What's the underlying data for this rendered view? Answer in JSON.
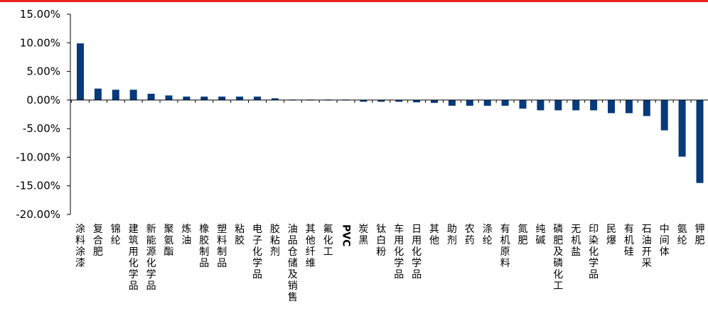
{
  "colors": {
    "accent_rule": "#e8231e",
    "bar": "#063a7a",
    "axis": "#000000",
    "text": "#000000"
  },
  "chart_data": {
    "type": "bar",
    "title": "",
    "xlabel": "",
    "ylabel": "",
    "ylim": [
      -0.2,
      0.15
    ],
    "y_ticks": [
      0.15,
      0.1,
      0.05,
      0.0,
      -0.05,
      -0.1,
      -0.15,
      -0.2
    ],
    "y_tick_labels": [
      "15.00%",
      "10.00%",
      "5.00%",
      "0.00%",
      "-5.00%",
      "-10.00%",
      "-15.00%",
      "-20.00%"
    ],
    "grid": false,
    "legend": "none",
    "categories": [
      "涂料涂漆",
      "复合肥",
      "锦纶",
      "建筑用化学品",
      "新能源化学品",
      "聚氨酯",
      "炼油",
      "橡胶制品",
      "塑料制品",
      "粘胶",
      "电子化学品",
      "胶粘剂",
      "油品仓储及销售",
      "其他纤维",
      "氟化工",
      "PVC",
      "炭黑",
      "钛白粉",
      "车用化学品",
      "日用化学品",
      "其他",
      "助剂",
      "农药",
      "涤纶",
      "有机原料",
      "氮肥",
      "纯碱",
      "磷肥及磷化工",
      "无机盐",
      "印染化学品",
      "民爆",
      "有机硅",
      "石油开采",
      "中间体",
      "氨纶",
      "钾肥"
    ],
    "values": [
      0.099,
      0.02,
      0.018,
      0.018,
      0.011,
      0.008,
      0.006,
      0.006,
      0.006,
      0.006,
      0.006,
      0.003,
      0.001,
      0.001,
      0.0005,
      0.0005,
      -0.003,
      -0.003,
      -0.003,
      -0.004,
      -0.005,
      -0.01,
      -0.01,
      -0.01,
      -0.01,
      -0.015,
      -0.018,
      -0.018,
      -0.018,
      -0.018,
      -0.023,
      -0.023,
      -0.028,
      -0.053,
      -0.099,
      -0.145
    ]
  }
}
